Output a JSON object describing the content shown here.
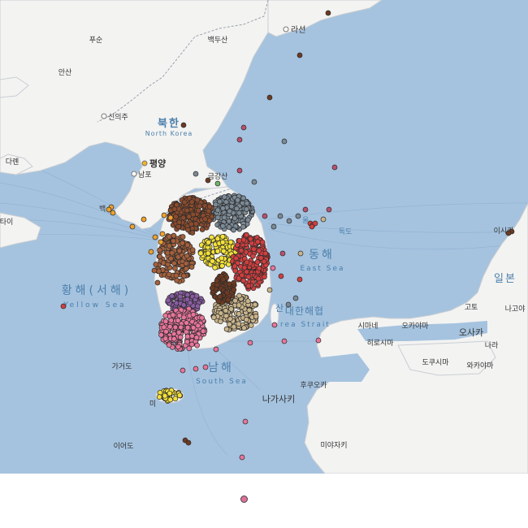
{
  "colors": {
    "sea": "#a5c3df",
    "land": "#f3f3f2",
    "land_edge": "#c9cdd2",
    "water_text": "#4b7fab",
    "place_text": "#333333",
    "border": "#9aa2ab",
    "legend_point": "#e0709a",
    "pink": "#e8759b",
    "brown": "#8b4b2d",
    "sienna": "#a4603c",
    "slate": "#7c8a96",
    "yellow": "#f3e13a",
    "red": "#d13f3f",
    "purple": "#8a5ca3",
    "tan": "#c9b48a",
    "orange": "#f0a22c",
    "dark_brown": "#6d3a22",
    "gray": "#a9a9a9",
    "dark_pink": "#b9506e",
    "green": "#6fb46a"
  },
  "icons": {
    "city": "city-marker-icon",
    "capital": "capital-marker-icon",
    "legend": "legend-point-icon"
  },
  "labels": {
    "pusun": "푸순",
    "paekdusan": "백두산",
    "raseon": "라선",
    "ansan": "안산",
    "sinuiju": "신의주",
    "bukhan": "북한",
    "north_korea": "North Korea",
    "dalian": "다롄",
    "pyongyang": "평양",
    "nampo": "남포",
    "geumgangsan": "금강산",
    "tai": "타이",
    "baek": "백",
    "dokdo": "독도",
    "ulleung": "울",
    "irokkawa": "이시카",
    "donghae": "동해",
    "east_sea": "East Sea",
    "japan": "일본",
    "yellow_sea_kr": "황해(서해)",
    "yellow_sea": "Yellow Sea",
    "korea_strait_kr": "대한해협",
    "korea_strait": "Korea Strait",
    "korea_strait_prefix": "rea Strait",
    "busan_fragment": "산",
    "gado": "고토",
    "nagoya": "나고야",
    "shimane": "시마네",
    "okayama": "오카야마",
    "osaka": "오사카",
    "hiroshima": "히로시마",
    "nara": "나라",
    "tokushima": "도쿠시마",
    "wakayama": "와카야마",
    "gageodo": "가거도",
    "namhae": "남해",
    "south_sea": "South Sea",
    "fukuoka": "후쿠오카",
    "nagasaki": "나가사키",
    "ieodo": "이어도",
    "miyazaki": "미야자키",
    "mi": "미"
  }
}
